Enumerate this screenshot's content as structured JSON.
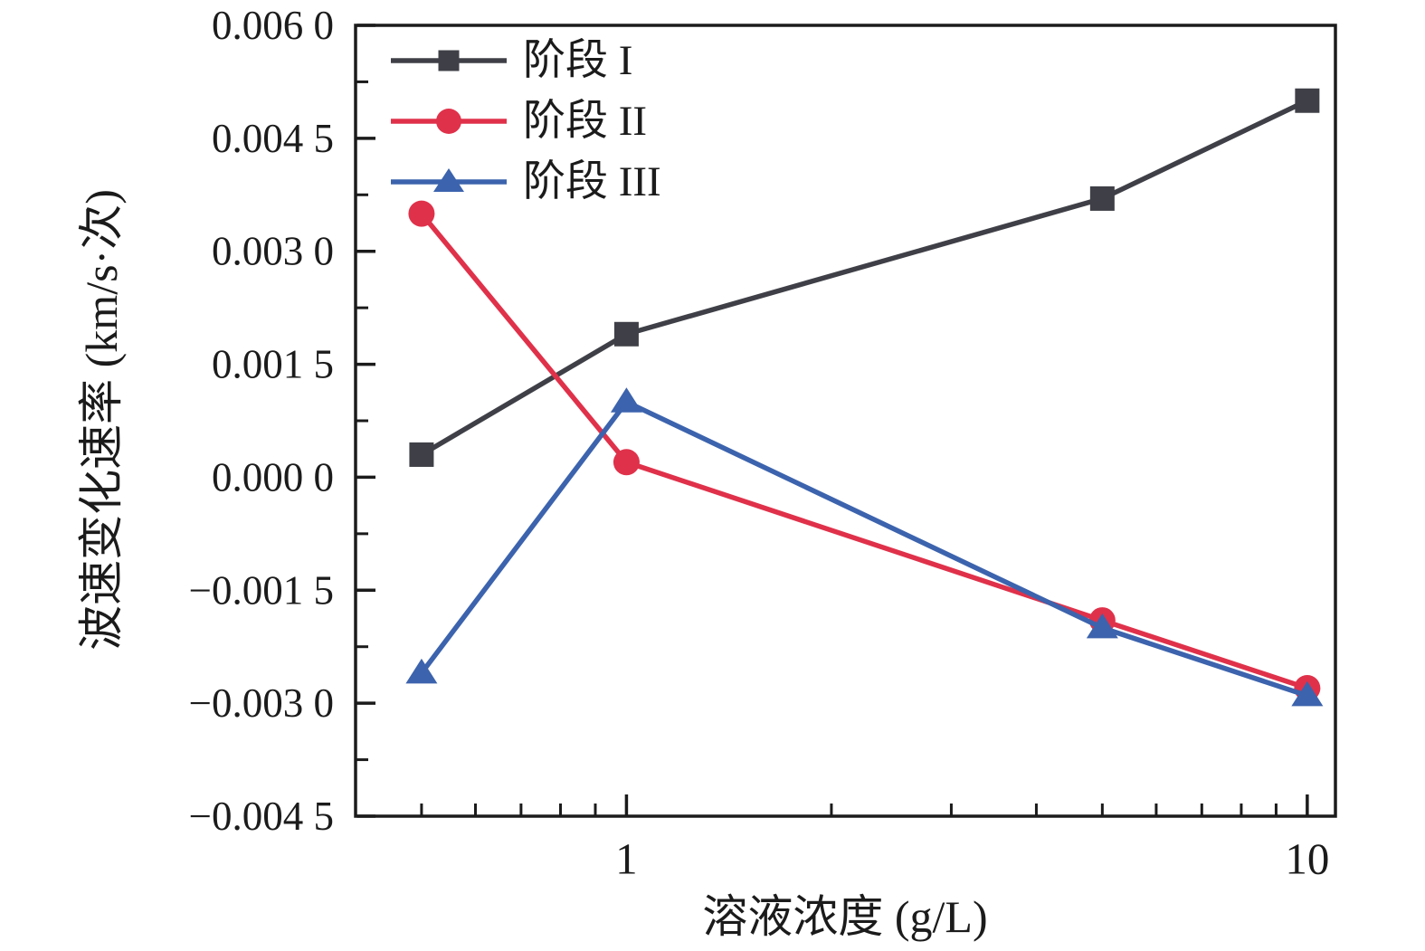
{
  "figure": {
    "background": "#ffffff",
    "axis_color": "#1b1b1b"
  },
  "chart_data": {
    "type": "line",
    "title": "",
    "xlabel": "溶液浓度 (g/L)",
    "ylabel": "波速变化速率 (km/s·次)",
    "x_scale": "log",
    "xlim": [
      0.4,
      11
    ],
    "ylim": [
      -0.0045,
      0.006
    ],
    "grid": false,
    "legend_position": "top-left-inside",
    "x": [
      0.5,
      1,
      5,
      10
    ],
    "series": [
      {
        "name": "阶段 I",
        "marker": "square",
        "color": "#3f4047",
        "values": [
          0.0003,
          0.0019,
          0.0037,
          0.005
        ]
      },
      {
        "name": "阶段 II",
        "marker": "circle",
        "color": "#e0314a",
        "values": [
          0.0035,
          0.0002,
          -0.0019,
          -0.0028
        ]
      },
      {
        "name": "阶段 III",
        "marker": "triangle",
        "color": "#3c63ad",
        "values": [
          -0.0026,
          0.001,
          -0.002,
          -0.0029
        ]
      }
    ],
    "x_major_ticks": {
      "values": [
        1,
        10
      ],
      "labels": [
        "1",
        "10"
      ]
    },
    "x_minor_ticks": [
      0.5,
      0.6,
      0.7,
      0.8,
      0.9,
      2,
      3,
      4,
      5,
      6,
      7,
      8,
      9
    ],
    "y_major_ticks": {
      "values": [
        0.006,
        0.0045,
        0.003,
        0.0015,
        0,
        -0.0015,
        -0.003,
        -0.0045
      ],
      "labels": [
        "0.006 0",
        "0.004 5",
        "0.003 0",
        "0.001 5",
        "0.000 0",
        "−0.001 5",
        "−0.003 0",
        "−0.004 5"
      ]
    },
    "y_minor_ticks": [
      0.00525,
      0.00375,
      0.00225,
      0.00075,
      -0.00075,
      -0.00225,
      -0.00375
    ]
  },
  "legend": {
    "items": [
      {
        "label": "阶段 I"
      },
      {
        "label": "阶段 II"
      },
      {
        "label": "阶段 III"
      }
    ]
  }
}
